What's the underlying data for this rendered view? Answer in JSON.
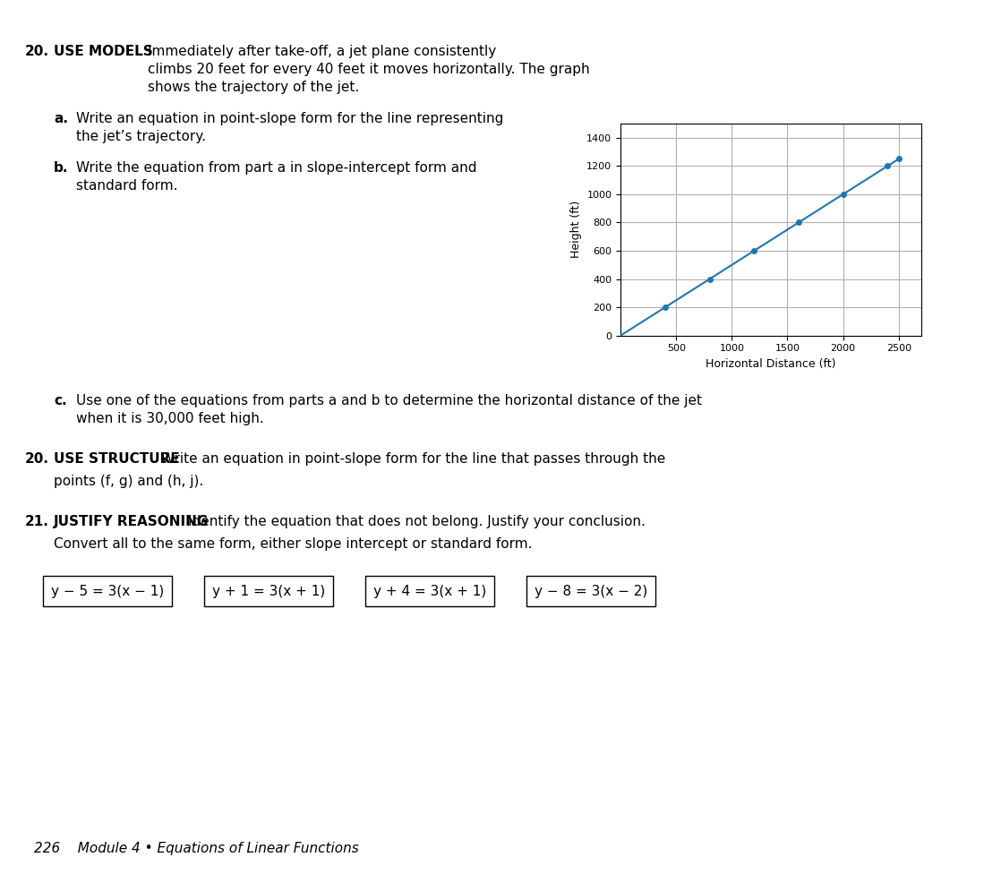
{
  "chart_data": {
    "type": "line",
    "xlabel": "Horizontal Distance (ft)",
    "ylabel": "Height (ft)",
    "xlim": [
      0,
      2700
    ],
    "ylim": [
      0,
      1500
    ],
    "xticks": [
      500,
      1000,
      1500,
      2000,
      2500
    ],
    "yticks": [
      0,
      200,
      400,
      600,
      800,
      1000,
      1200,
      1400
    ],
    "grid": true,
    "series": [
      {
        "type": "line",
        "x": [
          0,
          2500
        ],
        "values": [
          0,
          1250
        ]
      },
      {
        "type": "scatter",
        "x": [
          400,
          800,
          1200,
          1600,
          2000,
          2400,
          2500
        ],
        "values": [
          200,
          400,
          600,
          800,
          1000,
          1200,
          1250
        ]
      }
    ],
    "annotations": [
      "20.",
      "USE MODELS",
      "Immediately after take-off, a jet plane consistently\nclimbs 20 feet for every 40 feet it moves horizontally. The graph\nshows the trajectory of the jet.",
      "a.",
      "Write an equation in point-slope form for the line representing\nthe jet’s trajectory.",
      "b.",
      "Write the equation from part a in slope-intercept form and\nstandard form.",
      "c.",
      "Use one of the equations from parts a and b to determine the horizontal distance of the jet\nwhen it is 30,000 feet high.",
      "20.",
      "USE STRUCTURE",
      "Write an equation in point-slope form for the line that passes through the",
      "points (f, g) and (h, j).",
      "21.",
      "JUSTIFY REASONING",
      "Identify the equation that does not belong. Justify your conclusion.",
      "Convert all to the same form, either slope intercept or standard form.",
      "y − 5 = 3(x − 1)",
      "y + 1 = 3(x + 1)",
      "y + 4 = 3(x + 1)",
      "y − 8 = 3(x − 2)",
      "226    Module 4 • Equations of Linear Functions"
    ]
  }
}
